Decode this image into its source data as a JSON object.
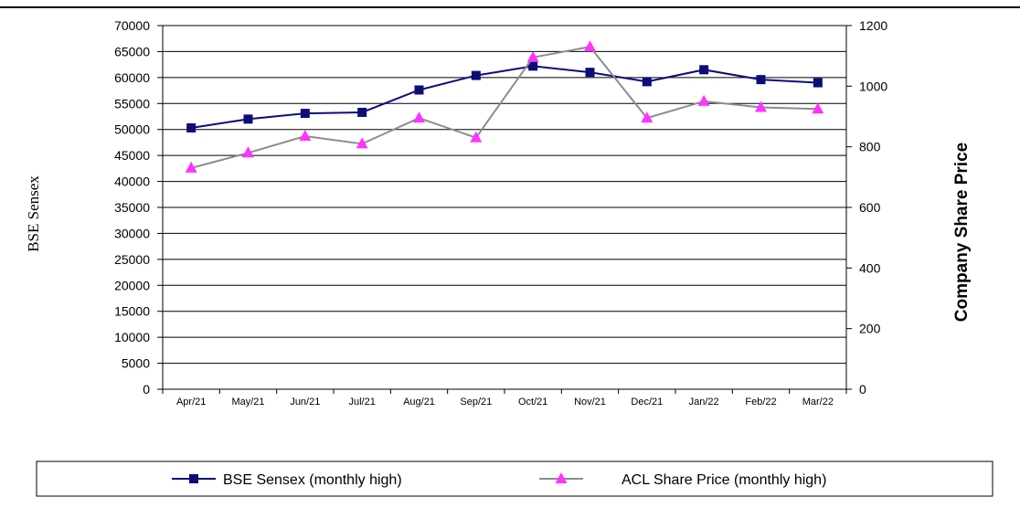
{
  "chart_data": {
    "type": "line",
    "categories": [
      "Apr/21",
      "May/21",
      "Jun/21",
      "Jul/21",
      "Aug/21",
      "Sep/21",
      "Oct/21",
      "Nov/21",
      "Dec/21",
      "Jan/22",
      "Feb/22",
      "Mar/22"
    ],
    "series": [
      {
        "name": "BSE Sensex (monthly high)",
        "axis": "left",
        "color": "#0d0d7a",
        "marker": "square",
        "values": [
          50300,
          52000,
          53100,
          53300,
          57600,
          60400,
          62200,
          61000,
          59200,
          61500,
          59600,
          59000
        ]
      },
      {
        "name": "ACL Share Price (monthly high)",
        "axis": "right",
        "color": "#8c8c8c",
        "marker_color": "#ff33ff",
        "marker": "triangle",
        "values": [
          730,
          780,
          835,
          810,
          895,
          830,
          1095,
          1130,
          895,
          950,
          930,
          925
        ]
      }
    ],
    "ylabel": "BSE Sensex",
    "ylabel_right": "Company Share Price",
    "ylim": [
      0,
      70000
    ],
    "yticks": [
      0,
      5000,
      10000,
      15000,
      20000,
      25000,
      30000,
      35000,
      40000,
      45000,
      50000,
      55000,
      60000,
      65000,
      70000
    ],
    "ylim_right": [
      0,
      1200
    ],
    "yticks_right": [
      0,
      200,
      400,
      600,
      800,
      1000,
      1200
    ],
    "grid": true,
    "legend_placement": "bottom"
  }
}
